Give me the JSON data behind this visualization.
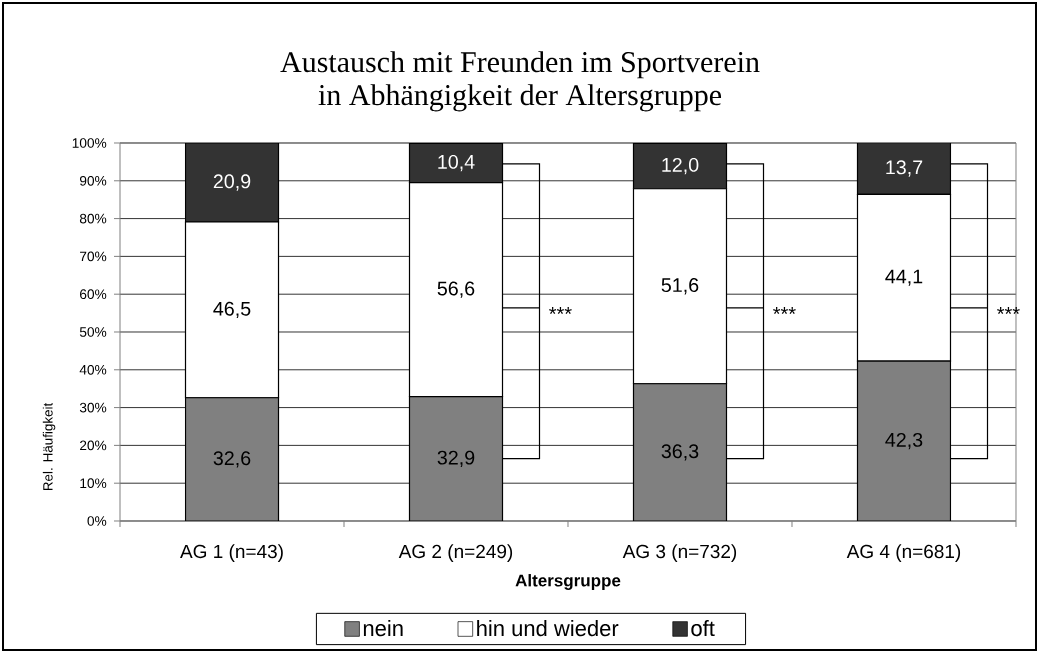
{
  "chart_data": {
    "type": "bar",
    "stacked": true,
    "title": "Austausch mit Freunden im Sportverein",
    "subtitle": "in Abhängigkeit der Altersgruppe",
    "xlabel": "Altersgruppe",
    "ylabel": "Rel. Häufigkeit",
    "categories": [
      "AG 1 (n=43)",
      "AG 2 (n=249)",
      "AG 3 (n=732)",
      "AG 4 (n=681)"
    ],
    "series": [
      {
        "name": "nein",
        "color": "#808080",
        "values": [
          32.6,
          32.9,
          36.3,
          42.3
        ],
        "value_labels": [
          "32,6",
          "32,9",
          "36,3",
          "42,3"
        ]
      },
      {
        "name": "hin und wieder",
        "color": "#ffffff",
        "values": [
          46.5,
          56.6,
          51.6,
          44.1
        ],
        "value_labels": [
          "46,5",
          "56,6",
          "51,6",
          "44,1"
        ]
      },
      {
        "name": "oft",
        "color": "#333333",
        "values": [
          20.9,
          10.4,
          12.0,
          13.7
        ],
        "value_labels": [
          "20,9",
          "10,4",
          "12,0",
          "13,7"
        ]
      }
    ],
    "ylim": [
      0,
      100
    ],
    "yticks": [
      {
        "value": 0,
        "label": "0%"
      },
      {
        "value": 10,
        "label": "10%"
      },
      {
        "value": 20,
        "label": "20%"
      },
      {
        "value": 30,
        "label": "30%"
      },
      {
        "value": 40,
        "label": "40%"
      },
      {
        "value": 50,
        "label": "50%"
      },
      {
        "value": 60,
        "label": "60%"
      },
      {
        "value": 70,
        "label": "70%"
      },
      {
        "value": 80,
        "label": "80%"
      },
      {
        "value": 90,
        "label": "90%"
      },
      {
        "value": 100,
        "label": "100%"
      }
    ],
    "grid": "y",
    "legend": "bottom",
    "annotations": [
      "***",
      "***",
      "***"
    ]
  }
}
